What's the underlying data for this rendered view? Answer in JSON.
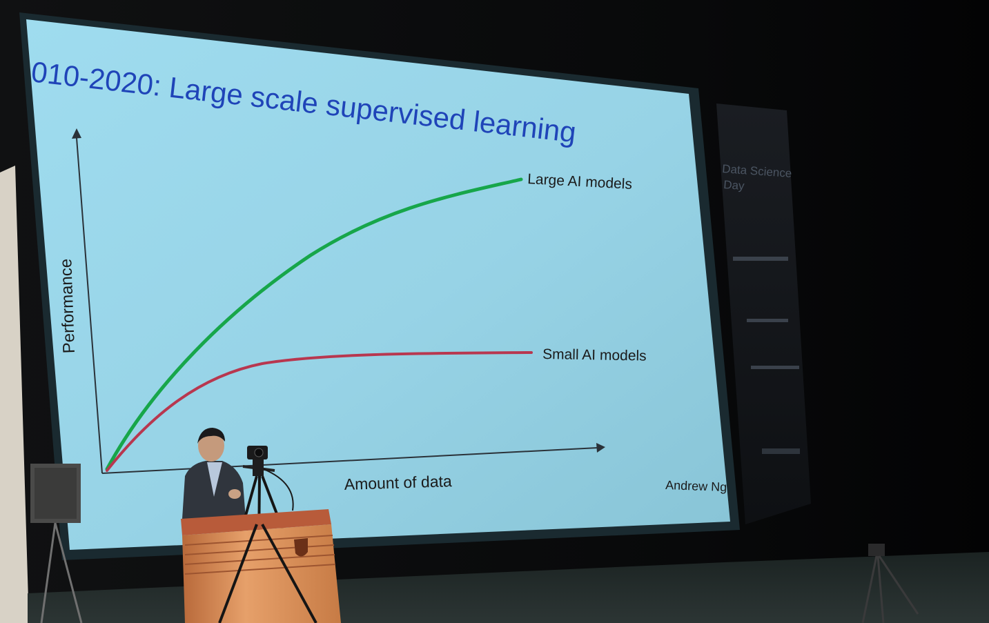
{
  "slide": {
    "title": "010-2020: Large scale supervised learning",
    "y_axis_label": "Performance",
    "x_axis_label": "Amount of data",
    "series_large_label": "Large AI models",
    "series_small_label": "Small AI models",
    "credit": "Andrew Ng"
  },
  "banner": {
    "line1": "Data Science",
    "line2": "Day"
  },
  "colors": {
    "slide_background": "#9dd7ea",
    "title": "#1f44b8",
    "large_models_curve": "#17a64a",
    "small_models_curve": "#b8374f",
    "axis": "#2a3138",
    "stage_dark": "#050506",
    "podium_wood": "#d9894d"
  }
}
